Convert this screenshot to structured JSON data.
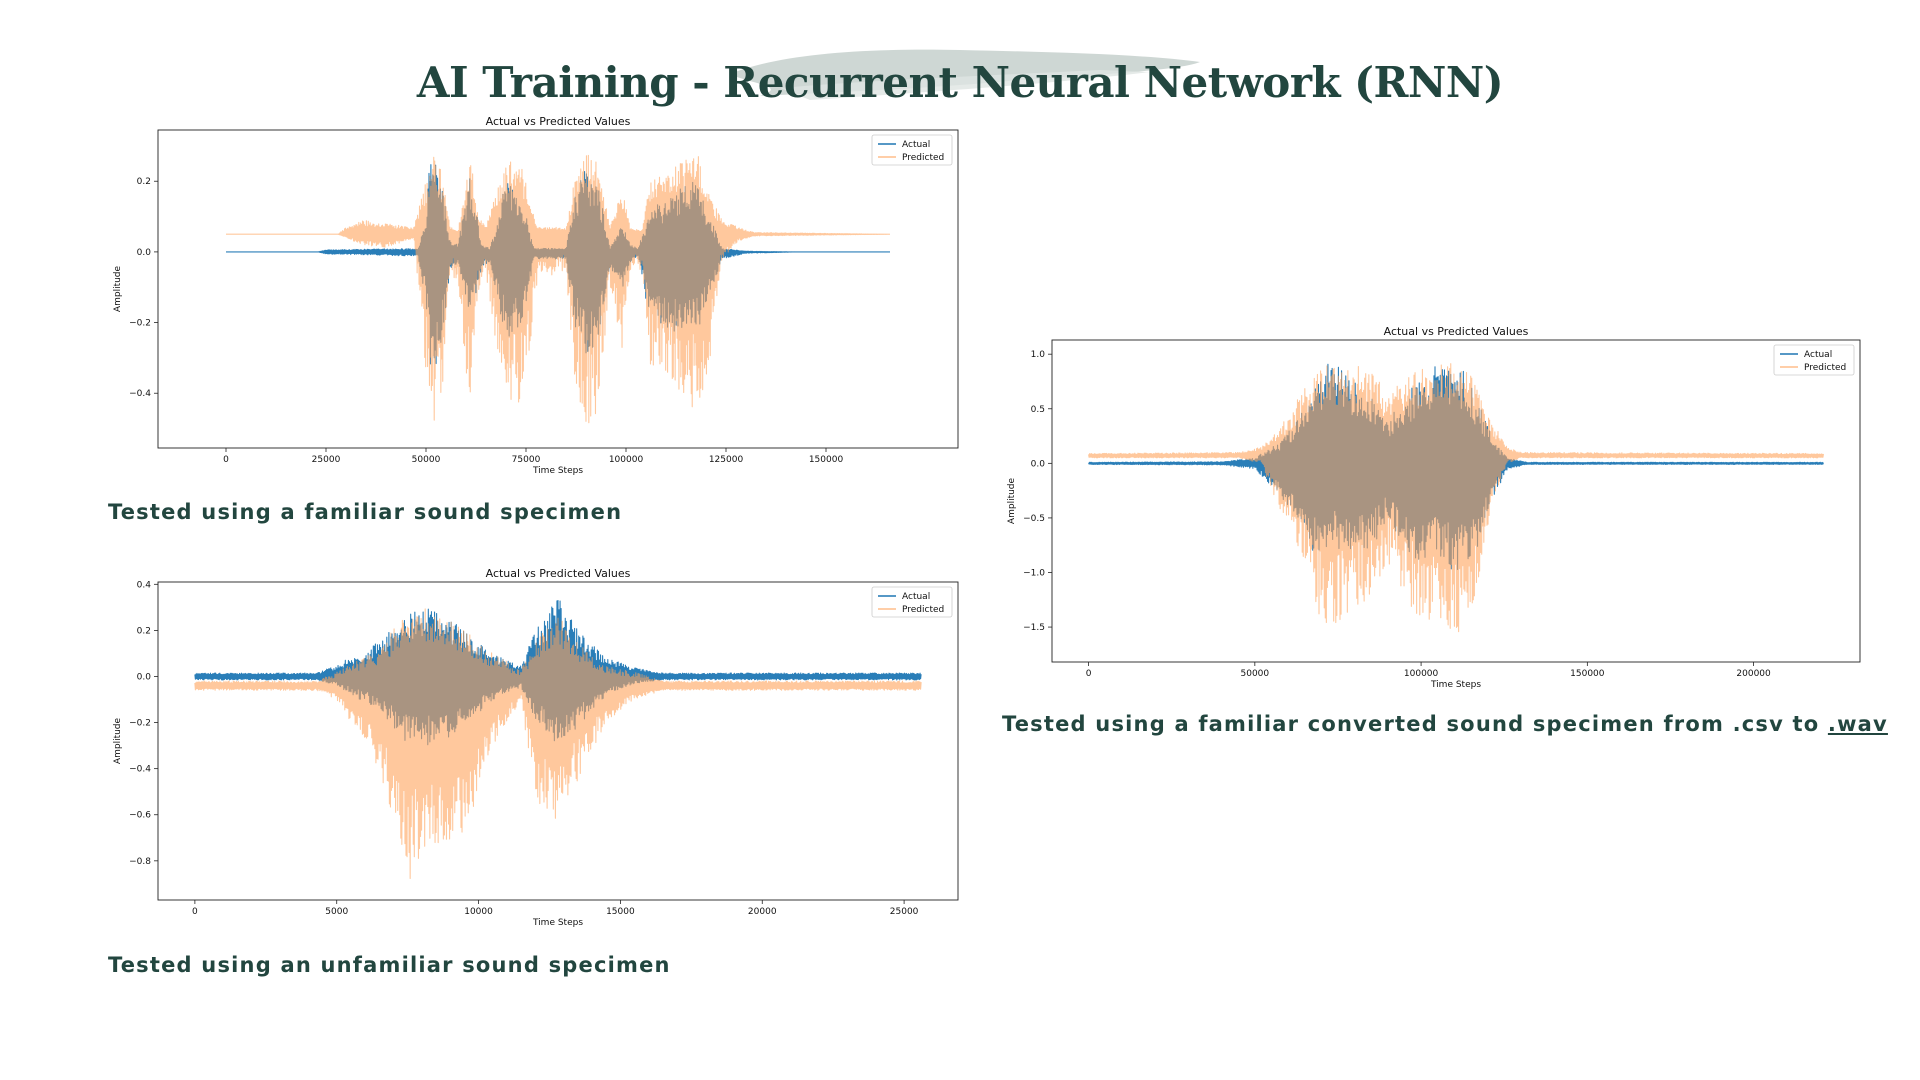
{
  "slide": {
    "title": "AI Training - Recurrent Neural Network (RNN)",
    "caption_1": "Tested using a familiar sound specimen",
    "caption_2": "Tested using an unfamiliar sound specimen",
    "caption_3_prefix": "Tested using a familiar converted sound specimen from .csv to ",
    "caption_3_link": ".wav",
    "title_color": "#22463f",
    "brush_color": "#c9d3cf"
  },
  "chart_data": [
    {
      "type": "line",
      "title": "Actual vs Predicted Values",
      "xlabel": "Time Steps",
      "ylabel": "Amplitude",
      "xlim": [
        -17000,
        183000
      ],
      "ylim": [
        -0.555,
        0.345
      ],
      "x_ticks": [
        0,
        25000,
        50000,
        75000,
        100000,
        125000,
        150000
      ],
      "y_ticks": [
        -0.4,
        -0.2,
        0.0,
        0.2
      ],
      "y_tick_labels": [
        "−0.4",
        "−0.2",
        "0.0",
        "0.2"
      ],
      "legend": "top-right",
      "x_range": [
        0,
        166000
      ],
      "series": [
        {
          "name": "Actual",
          "color": "#1f77b4",
          "baseline": 0.0,
          "envelope": [
            [
              0,
              0.0,
              0.0
            ],
            [
              23000,
              0.0,
              0.0
            ],
            [
              25000,
              0.006,
              -0.006
            ],
            [
              48000,
              0.01,
              -0.012
            ],
            [
              50000,
              0.1,
              -0.14
            ],
            [
              51000,
              0.28,
              -0.32
            ],
            [
              52000,
              0.32,
              -0.35
            ],
            [
              54000,
              0.2,
              -0.25
            ],
            [
              56000,
              0.03,
              -0.05
            ],
            [
              58000,
              0.02,
              -0.03
            ],
            [
              61000,
              0.22,
              -0.2
            ],
            [
              64000,
              0.02,
              -0.04
            ],
            [
              66000,
              0.01,
              -0.03
            ],
            [
              70000,
              0.2,
              -0.25
            ],
            [
              74000,
              0.15,
              -0.22
            ],
            [
              77000,
              0.01,
              -0.02
            ],
            [
              85000,
              0.01,
              -0.02
            ],
            [
              87000,
              0.15,
              -0.2
            ],
            [
              90000,
              0.25,
              -0.3
            ],
            [
              93000,
              0.2,
              -0.25
            ],
            [
              96000,
              0.01,
              -0.04
            ],
            [
              99000,
              0.1,
              -0.12
            ],
            [
              101000,
              0.02,
              -0.03
            ],
            [
              103000,
              0.01,
              -0.01
            ],
            [
              106000,
              0.12,
              -0.2
            ],
            [
              110000,
              0.15,
              -0.22
            ],
            [
              115000,
              0.2,
              -0.23
            ],
            [
              118000,
              0.2,
              -0.22
            ],
            [
              121000,
              0.1,
              -0.12
            ],
            [
              124000,
              0.01,
              -0.02
            ],
            [
              130000,
              0.002,
              -0.004
            ],
            [
              143000,
              0.0,
              0.0
            ],
            [
              166000,
              0.0,
              0.0
            ]
          ]
        },
        {
          "name": "Predicted",
          "color": "#ffa35b",
          "baseline": 0.05,
          "envelope": [
            [
              0,
              0.05,
              0.05
            ],
            [
              28000,
              0.05,
              0.05
            ],
            [
              30000,
              0.07,
              0.04
            ],
            [
              34000,
              0.09,
              0.02
            ],
            [
              40000,
              0.08,
              0.01
            ],
            [
              47000,
              0.07,
              0.04
            ],
            [
              50000,
              0.2,
              -0.35
            ],
            [
              52000,
              0.3,
              -0.52
            ],
            [
              54000,
              0.22,
              -0.4
            ],
            [
              56000,
              0.07,
              -0.05
            ],
            [
              58000,
              0.06,
              -0.1
            ],
            [
              61000,
              0.28,
              -0.45
            ],
            [
              63000,
              0.1,
              -0.12
            ],
            [
              65000,
              0.07,
              -0.06
            ],
            [
              68000,
              0.2,
              -0.3
            ],
            [
              71000,
              0.26,
              -0.45
            ],
            [
              73000,
              0.27,
              -0.44
            ],
            [
              75000,
              0.2,
              -0.35
            ],
            [
              78000,
              0.07,
              -0.08
            ],
            [
              85000,
              0.07,
              -0.05
            ],
            [
              87000,
              0.2,
              -0.35
            ],
            [
              90000,
              0.28,
              -0.5
            ],
            [
              93000,
              0.25,
              -0.45
            ],
            [
              96000,
              0.07,
              -0.1
            ],
            [
              99000,
              0.18,
              -0.3
            ],
            [
              101000,
              0.07,
              -0.05
            ],
            [
              104000,
              0.06,
              -0.05
            ],
            [
              106000,
              0.2,
              -0.32
            ],
            [
              110000,
              0.22,
              -0.35
            ],
            [
              114000,
              0.26,
              -0.4
            ],
            [
              118000,
              0.28,
              -0.47
            ],
            [
              121000,
              0.16,
              -0.3
            ],
            [
              124000,
              0.09,
              -0.02
            ],
            [
              128000,
              0.07,
              0.03
            ],
            [
              132000,
              0.055,
              0.045
            ],
            [
              166000,
              0.05,
              0.05
            ]
          ]
        }
      ]
    },
    {
      "type": "line",
      "title": "Actual vs Predicted Values",
      "xlabel": "Time Steps",
      "ylabel": "Amplitude",
      "xlim": [
        -1300,
        26900
      ],
      "ylim": [
        -0.97,
        0.41
      ],
      "x_ticks": [
        0,
        5000,
        10000,
        15000,
        20000,
        25000
      ],
      "y_ticks": [
        -0.8,
        -0.6,
        -0.4,
        -0.2,
        0.0,
        0.2,
        0.4
      ],
      "y_tick_labels": [
        "−0.8",
        "−0.6",
        "−0.4",
        "−0.2",
        "0.0",
        "0.2",
        "0.4"
      ],
      "legend": "top-right",
      "x_range": [
        0,
        25600
      ],
      "series": [
        {
          "name": "Actual",
          "color": "#1f77b4",
          "baseline": 0.0,
          "envelope": [
            [
              0,
              0.015,
              -0.015
            ],
            [
              4300,
              0.015,
              -0.015
            ],
            [
              5000,
              0.05,
              -0.04
            ],
            [
              6500,
              0.15,
              -0.15
            ],
            [
              7500,
              0.27,
              -0.3
            ],
            [
              8500,
              0.31,
              -0.3
            ],
            [
              9500,
              0.2,
              -0.22
            ],
            [
              10500,
              0.1,
              -0.1
            ],
            [
              11500,
              0.05,
              -0.05
            ],
            [
              12000,
              0.2,
              -0.2
            ],
            [
              12800,
              0.35,
              -0.3
            ],
            [
              13500,
              0.2,
              -0.22
            ],
            [
              14500,
              0.08,
              -0.08
            ],
            [
              15500,
              0.04,
              -0.03
            ],
            [
              16500,
              0.015,
              -0.015
            ],
            [
              25600,
              0.015,
              -0.015
            ]
          ]
        },
        {
          "name": "Predicted",
          "color": "#ffa35b",
          "baseline": -0.04,
          "envelope": [
            [
              0,
              -0.02,
              -0.06
            ],
            [
              4300,
              -0.02,
              -0.06
            ],
            [
              5000,
              0.02,
              -0.1
            ],
            [
              6500,
              0.12,
              -0.4
            ],
            [
              7500,
              0.29,
              -0.9
            ],
            [
              8200,
              0.3,
              -0.75
            ],
            [
              9500,
              0.2,
              -0.7
            ],
            [
              10500,
              0.1,
              -0.3
            ],
            [
              11500,
              0.03,
              -0.1
            ],
            [
              12000,
              0.15,
              -0.55
            ],
            [
              12800,
              0.27,
              -0.63
            ],
            [
              13500,
              0.15,
              -0.45
            ],
            [
              14500,
              0.05,
              -0.2
            ],
            [
              15500,
              0.02,
              -0.1
            ],
            [
              16500,
              -0.02,
              -0.06
            ],
            [
              25600,
              -0.02,
              -0.06
            ]
          ]
        }
      ]
    },
    {
      "type": "line",
      "title": "Actual vs Predicted Values",
      "xlabel": "Time Steps",
      "ylabel": "Amplitude",
      "xlim": [
        -11000,
        232000
      ],
      "ylim": [
        -1.82,
        1.13
      ],
      "x_ticks": [
        0,
        50000,
        100000,
        150000,
        200000
      ],
      "y_ticks": [
        -1.5,
        -1.0,
        -0.5,
        0.0,
        0.5,
        1.0
      ],
      "y_tick_labels": [
        "−1.5",
        "−1.0",
        "−0.5",
        "0.0",
        "0.5",
        "1.0"
      ],
      "legend": "top-right",
      "x_range": [
        0,
        221000
      ],
      "series": [
        {
          "name": "Actual",
          "color": "#1f77b4",
          "baseline": 0.0,
          "envelope": [
            [
              0,
              0.01,
              -0.01
            ],
            [
              40000,
              0.015,
              -0.015
            ],
            [
              50000,
              0.05,
              -0.05
            ],
            [
              58000,
              0.2,
              -0.3
            ],
            [
              65000,
              0.5,
              -0.7
            ],
            [
              70000,
              0.8,
              -0.9
            ],
            [
              73000,
              1.0,
              -0.75
            ],
            [
              78000,
              0.8,
              -0.85
            ],
            [
              85000,
              0.6,
              -0.8
            ],
            [
              90000,
              0.4,
              -0.5
            ],
            [
              95000,
              0.6,
              -0.8
            ],
            [
              100000,
              0.8,
              -0.9
            ],
            [
              105000,
              0.95,
              -0.85
            ],
            [
              110000,
              0.98,
              -1.0
            ],
            [
              114000,
              0.8,
              -0.95
            ],
            [
              118000,
              0.5,
              -0.7
            ],
            [
              122000,
              0.2,
              -0.3
            ],
            [
              126000,
              0.05,
              -0.05
            ],
            [
              132000,
              0.01,
              -0.01
            ],
            [
              221000,
              0.01,
              -0.01
            ]
          ]
        },
        {
          "name": "Predicted",
          "color": "#ffa35b",
          "baseline": 0.07,
          "envelope": [
            [
              0,
              0.09,
              0.05
            ],
            [
              45000,
              0.1,
              0.05
            ],
            [
              52000,
              0.15,
              0.0
            ],
            [
              58000,
              0.35,
              -0.5
            ],
            [
              65000,
              0.7,
              -0.9
            ],
            [
              70000,
              0.9,
              -1.5
            ],
            [
              73000,
              0.9,
              -1.7
            ],
            [
              78000,
              0.9,
              -1.4
            ],
            [
              85000,
              0.9,
              -1.3
            ],
            [
              90000,
              0.6,
              -0.9
            ],
            [
              95000,
              0.8,
              -1.2
            ],
            [
              100000,
              0.9,
              -1.5
            ],
            [
              105000,
              0.9,
              -1.4
            ],
            [
              110000,
              0.95,
              -1.6
            ],
            [
              114000,
              0.9,
              -1.65
            ],
            [
              118000,
              0.6,
              -1.0
            ],
            [
              122000,
              0.35,
              -0.3
            ],
            [
              126000,
              0.15,
              0.0
            ],
            [
              130000,
              0.1,
              0.05
            ],
            [
              221000,
              0.09,
              0.05
            ]
          ]
        }
      ]
    }
  ]
}
